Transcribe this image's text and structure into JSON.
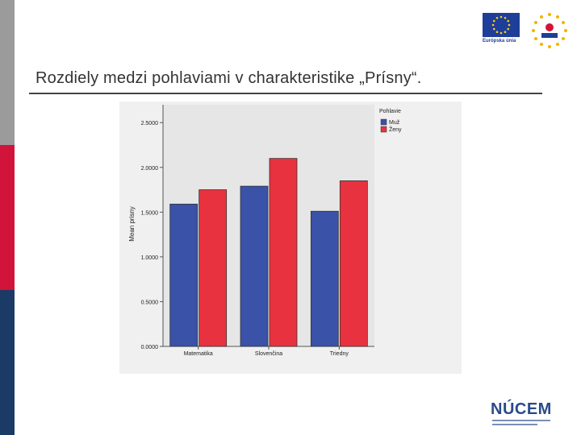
{
  "slide": {
    "title": "Rozdiely medzi pohlaviami v charakteristike „Prísny“."
  },
  "logos": {
    "eu_caption": "Európska únia",
    "nucem": "NÚCEM"
  },
  "colors": {
    "muz": "#3a52a8",
    "zeny": "#e8323f",
    "plot_bg": "#e6e6e6",
    "panel_bg": "#f0f0f0"
  },
  "chart_data": {
    "type": "bar",
    "categories": [
      "Matematika",
      "Slovenčina",
      "Triedny"
    ],
    "series": [
      {
        "name": "Muž",
        "values": [
          1.59,
          1.79,
          1.51
        ]
      },
      {
        "name": "Ženy",
        "values": [
          1.75,
          2.1,
          1.85
        ]
      }
    ],
    "title": "",
    "xlabel": "",
    "ylabel": "Mean prisny",
    "ylim": [
      0,
      2.7
    ],
    "yticks": [
      "0.0000",
      "0.5000",
      "1.0000",
      "1.5000",
      "2.0000",
      "2.5000"
    ],
    "legend_title": "Pohlavie",
    "legend_position": "top-right",
    "grid": false
  }
}
